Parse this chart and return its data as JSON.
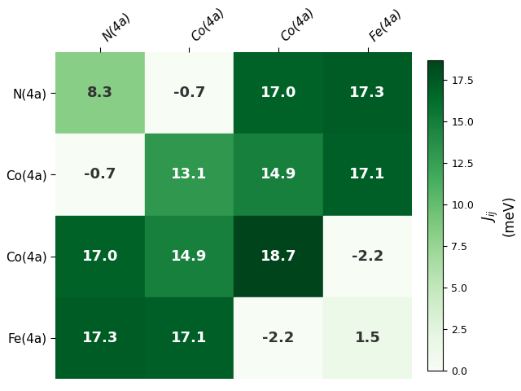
{
  "labels": [
    "N(4a)",
    "Co(4a)",
    "Co(4a)",
    "Fe(4a)"
  ],
  "matrix": [
    [
      8.3,
      -0.7,
      17.0,
      17.3
    ],
    [
      -0.7,
      13.1,
      14.9,
      17.1
    ],
    [
      17.0,
      14.9,
      18.7,
      -2.2
    ],
    [
      17.3,
      17.1,
      -2.2,
      1.5
    ]
  ],
  "vmin": 0.0,
  "vmax": 18.7,
  "colorbar_ticks": [
    0.0,
    2.5,
    5.0,
    7.5,
    10.0,
    12.5,
    15.0,
    17.5
  ],
  "cmap": "Greens",
  "figsize": [
    6.4,
    4.8
  ],
  "dpi": 100,
  "cell_fontsize": 13,
  "label_fontsize": 11,
  "colorbar_fontsize": 12,
  "background_color": "#ffffff",
  "text_threshold": 0.45
}
